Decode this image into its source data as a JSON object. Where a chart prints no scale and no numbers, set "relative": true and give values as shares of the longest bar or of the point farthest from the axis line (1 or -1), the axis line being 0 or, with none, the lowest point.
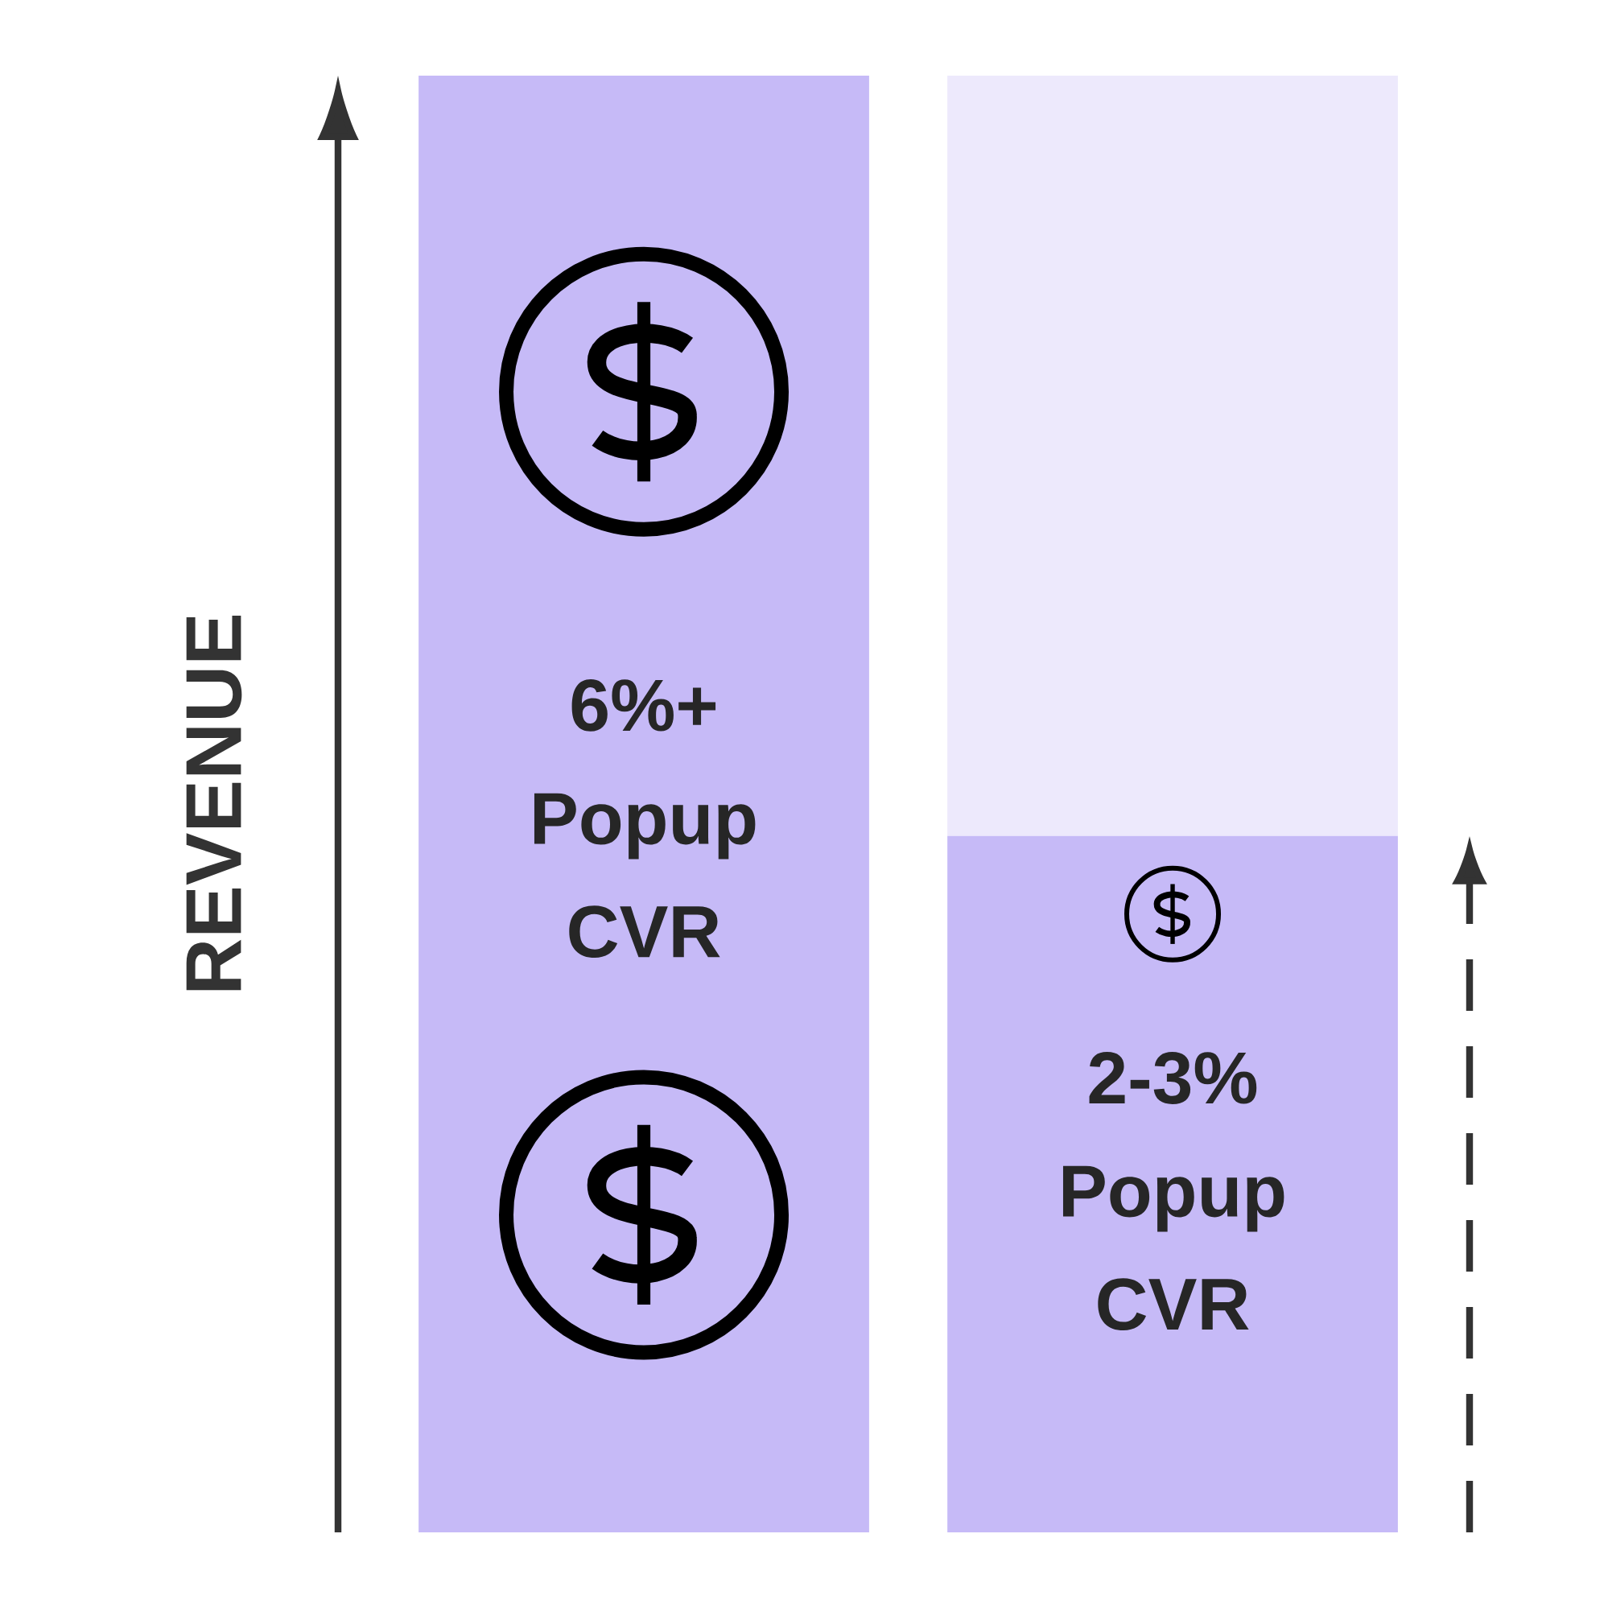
{
  "chart_data": {
    "type": "bar",
    "relative": true,
    "stacked": true,
    "ylabel": "REVENUE",
    "categories": [
      "6%+ Popup CVR",
      "2-3% Popup CVR"
    ],
    "series": [
      {
        "color": "#c6baf7",
        "values": [
          1,
          0.478
        ]
      },
      {
        "color": "#ede9fc",
        "values": [
          null,
          0.522
        ]
      }
    ]
  }
}
